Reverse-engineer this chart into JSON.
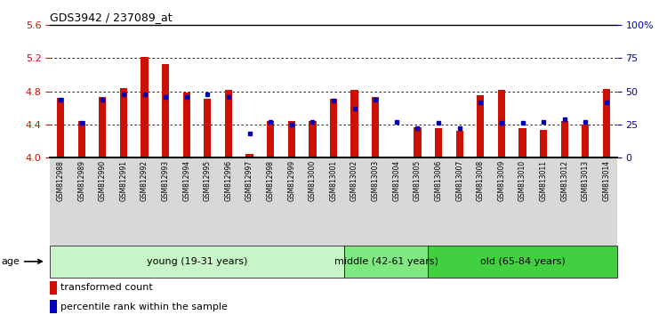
{
  "title": "GDS3942 / 237089_at",
  "samples": [
    "GSM812988",
    "GSM812989",
    "GSM812990",
    "GSM812991",
    "GSM812992",
    "GSM812993",
    "GSM812994",
    "GSM812995",
    "GSM812996",
    "GSM812997",
    "GSM812998",
    "GSM812999",
    "GSM813000",
    "GSM813001",
    "GSM813002",
    "GSM813003",
    "GSM813004",
    "GSM813005",
    "GSM813006",
    "GSM813007",
    "GSM813008",
    "GSM813009",
    "GSM813010",
    "GSM813011",
    "GSM813012",
    "GSM813013",
    "GSM813014"
  ],
  "red_values": [
    4.72,
    4.44,
    4.73,
    4.84,
    5.22,
    5.13,
    4.79,
    4.71,
    4.82,
    4.04,
    4.44,
    4.44,
    4.44,
    4.71,
    4.82,
    4.73,
    4.01,
    4.37,
    4.35,
    4.32,
    4.75,
    4.82,
    4.35,
    4.33,
    4.44,
    4.4,
    4.83
  ],
  "blue_values": [
    44,
    26,
    44,
    48,
    48,
    46,
    46,
    48,
    46,
    18,
    27,
    25,
    27,
    43,
    37,
    44,
    27,
    22,
    26,
    22,
    42,
    26,
    26,
    27,
    29,
    27,
    42
  ],
  "ylim_left": [
    4.0,
    5.6
  ],
  "ylim_right": [
    0,
    100
  ],
  "yticks_left": [
    4.0,
    4.4,
    4.8,
    5.2,
    5.6
  ],
  "yticks_right": [
    0,
    25,
    50,
    75,
    100
  ],
  "ytick_labels_right": [
    "0",
    "25",
    "50",
    "75",
    "100%"
  ],
  "base": 4.0,
  "groups": [
    {
      "label": "young (19-31 years)",
      "start": 0,
      "end": 14,
      "color": "#c8f5c8"
    },
    {
      "label": "middle (42-61 years)",
      "start": 14,
      "end": 18,
      "color": "#80e880"
    },
    {
      "label": "old (65-84 years)",
      "start": 18,
      "end": 27,
      "color": "#40d040"
    }
  ],
  "bar_color": "#cc1100",
  "dot_color": "#0000bb",
  "background_color": "#ffffff",
  "left_tick_color": "#cc1100",
  "right_tick_color": "#0000bb",
  "xtick_bg_color": "#d8d8d8",
  "age_label": "age",
  "legend_red": "transformed count",
  "legend_blue": "percentile rank within the sample",
  "bar_width": 0.35
}
